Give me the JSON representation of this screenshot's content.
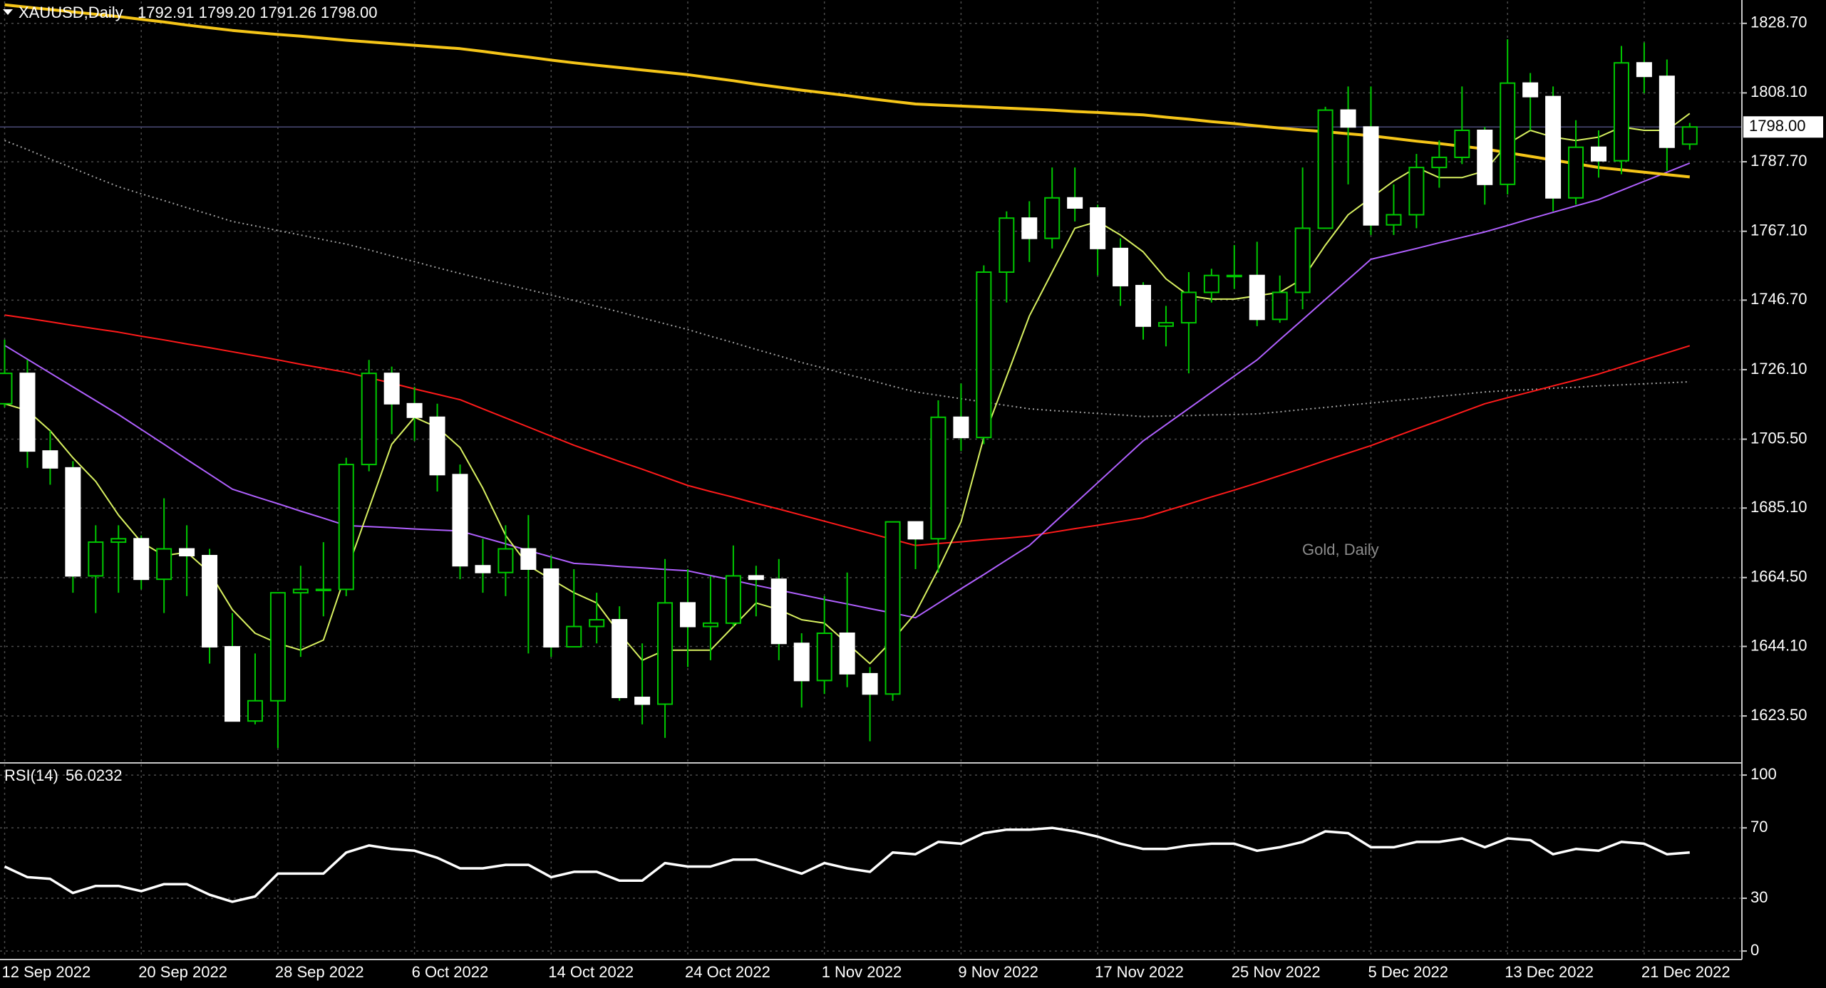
{
  "chart_data": [
    {
      "type": "candlestick",
      "title": "XAUUSD,Daily",
      "ohlc": "1792.91 1799.20 1791.26 1798.00",
      "watermark": "Gold, Daily",
      "categories": [
        "12 Sep 2022",
        null,
        null,
        null,
        null,
        null,
        "20 Sep 2022",
        null,
        null,
        null,
        null,
        null,
        "28 Sep 2022",
        null,
        null,
        null,
        null,
        null,
        "6 Oct 2022",
        null,
        null,
        null,
        null,
        null,
        "14 Oct 2022",
        null,
        null,
        null,
        null,
        null,
        "24 Oct 2022",
        null,
        null,
        null,
        null,
        null,
        "1 Nov 2022",
        null,
        null,
        null,
        null,
        null,
        "9 Nov 2022",
        null,
        null,
        null,
        null,
        null,
        "17 Nov 2022",
        null,
        null,
        null,
        null,
        null,
        "25 Nov 2022",
        null,
        null,
        null,
        null,
        null,
        "5 Dec 2022",
        null,
        null,
        null,
        null,
        null,
        "13 Dec 2022",
        null,
        null,
        null,
        null,
        null,
        "21 Dec 2022",
        null,
        null
      ],
      "open": [
        1716,
        1725,
        1702,
        1697,
        1665,
        1675,
        1676,
        1664,
        1673,
        1671,
        1644,
        1622,
        1628,
        1660,
        1661,
        1661,
        1698,
        1725,
        1716,
        1712,
        1695,
        1668,
        1666,
        1673,
        1667,
        1644,
        1650,
        1652,
        1629,
        1627,
        1657,
        1650,
        1651,
        1665,
        1664,
        1645,
        1634,
        1648,
        1636,
        1630,
        1681,
        1676,
        1712,
        1706,
        1755,
        1771,
        1765,
        1777,
        1774,
        1762,
        1751,
        1739,
        1740,
        1749,
        1754,
        1754,
        1741,
        1749,
        1768,
        1803,
        1798,
        1769,
        1772,
        1786,
        1789,
        1797,
        1781,
        1811,
        1807,
        1777,
        1792,
        1788,
        1817,
        1813,
        1792.91
      ],
      "high": [
        1735,
        1729,
        1708,
        1699,
        1680,
        1680,
        1677,
        1688,
        1680,
        1673,
        1654,
        1642,
        1660,
        1668,
        1675,
        1700,
        1729,
        1727,
        1721,
        1716,
        1698,
        1676,
        1680,
        1683,
        1671,
        1667,
        1660,
        1656,
        1645,
        1670,
        1667,
        1665,
        1674,
        1668,
        1670,
        1648,
        1659,
        1666,
        1638,
        1681,
        1681,
        1717,
        1722,
        1757,
        1773,
        1776,
        1786,
        1786,
        1775,
        1765,
        1752,
        1745,
        1755,
        1756,
        1763,
        1764,
        1754,
        1786,
        1804,
        1810,
        1810,
        1781,
        1790,
        1794,
        1810,
        1798,
        1824,
        1814,
        1810,
        1800,
        1797,
        1822,
        1823,
        1818,
        1799.2
      ],
      "low": [
        1715,
        1697,
        1692,
        1660,
        1654,
        1660,
        1661,
        1654,
        1659,
        1639,
        1622,
        1621,
        1614,
        1641,
        1653,
        1659,
        1696,
        1707,
        1705,
        1690,
        1664,
        1660,
        1659,
        1642,
        1641,
        1644,
        1645,
        1628,
        1621,
        1617,
        1638,
        1640,
        1650,
        1653,
        1640,
        1626,
        1630,
        1632,
        1616,
        1628,
        1667,
        1666,
        1702,
        1704,
        1746,
        1758,
        1762,
        1770,
        1754,
        1745,
        1735,
        1733,
        1725,
        1746,
        1750,
        1739,
        1740,
        1744,
        1768,
        1781,
        1766,
        1766,
        1768,
        1780,
        1787,
        1775,
        1778,
        1797,
        1773,
        1775,
        1783,
        1784,
        1808,
        1785,
        1791.26
      ],
      "close": [
        1725,
        1702,
        1697,
        1665,
        1675,
        1676,
        1664,
        1673,
        1671,
        1644,
        1622,
        1628,
        1660,
        1661,
        1661,
        1698,
        1725,
        1716,
        1712,
        1695,
        1668,
        1666,
        1673,
        1667,
        1644,
        1650,
        1652,
        1629,
        1627,
        1657,
        1650,
        1651,
        1665,
        1664,
        1645,
        1634,
        1648,
        1636,
        1630,
        1681,
        1676,
        1712,
        1706,
        1755,
        1771,
        1765,
        1777,
        1774,
        1762,
        1751,
        1739,
        1740,
        1749,
        1754,
        1754,
        1741,
        1749,
        1768,
        1803,
        1798,
        1769,
        1772,
        1786,
        1789,
        1797,
        1781,
        1811,
        1807,
        1777,
        1792,
        1788,
        1817,
        1813,
        1792,
        1798
      ],
      "up_color": "#000000",
      "down_color": "#ffffff",
      "wick_color": "#00c800",
      "lines": [
        {
          "color": "#a0a0a0",
          "style": "dotted",
          "values": [
            1794.0,
            1791.3,
            1788.5,
            1785.8,
            1783.0,
            1780.3,
            1778.2,
            1776.2,
            1774.1,
            1772.1,
            1770.0,
            1768.7,
            1767.3,
            1766.0,
            1764.6,
            1763.3,
            1761.6,
            1759.8,
            1758.1,
            1756.3,
            1754.6,
            1753.0,
            1751.4,
            1749.8,
            1748.2,
            1746.6,
            1744.9,
            1743.2,
            1741.4,
            1739.7,
            1738.0,
            1736.0,
            1734.1,
            1732.1,
            1730.2,
            1728.2,
            1726.5,
            1724.7,
            1723.0,
            1721.2,
            1719.5,
            1718.5,
            1717.5,
            1716.5,
            1715.5,
            1714.5,
            1714.0,
            1713.6,
            1713.1,
            1712.7,
            1712.2,
            1712.4,
            1712.5,
            1712.7,
            1712.8,
            1713.0,
            1713.6,
            1714.3,
            1714.9,
            1715.6,
            1716.2,
            1716.9,
            1717.5,
            1718.2,
            1718.8,
            1719.5,
            1719.9,
            1720.2,
            1720.6,
            1720.9,
            1721.3,
            1721.6,
            1721.9,
            1722.2,
            1722.5
          ]
        },
        {
          "color": "#ff1a1a",
          "style": "solid",
          "values": [
            1742.3,
            1741.3,
            1740.3,
            1739.2,
            1738.2,
            1737.2,
            1736.0,
            1734.9,
            1733.7,
            1732.6,
            1731.4,
            1730.2,
            1729.0,
            1727.7,
            1726.5,
            1725.3,
            1723.7,
            1722.1,
            1720.4,
            1718.8,
            1717.2,
            1714.5,
            1711.8,
            1709.1,
            1706.4,
            1703.7,
            1701.3,
            1698.9,
            1696.6,
            1694.2,
            1691.8,
            1690.0,
            1688.3,
            1686.5,
            1684.8,
            1683.0,
            1681.2,
            1679.4,
            1677.6,
            1675.8,
            1674.0,
            1674.6,
            1675.1,
            1675.7,
            1676.2,
            1676.8,
            1677.9,
            1679.0,
            1680.0,
            1681.1,
            1682.2,
            1684.3,
            1686.3,
            1688.4,
            1690.4,
            1692.5,
            1694.7,
            1696.9,
            1699.2,
            1701.4,
            1703.6,
            1706.1,
            1708.6,
            1711.0,
            1713.5,
            1716.0,
            1717.8,
            1719.5,
            1721.3,
            1723.0,
            1724.8,
            1726.9,
            1729.0,
            1731.1,
            1733.2
          ]
        },
        {
          "color": "#b060ff",
          "style": "solid",
          "values": [
            1733.3,
            1729.2,
            1725.1,
            1721.0,
            1716.9,
            1712.8,
            1708.4,
            1704.0,
            1699.5,
            1695.1,
            1690.7,
            1688.5,
            1686.4,
            1684.2,
            1682.1,
            1679.9,
            1679.6,
            1679.3,
            1678.9,
            1678.6,
            1678.3,
            1676.4,
            1674.5,
            1672.5,
            1670.6,
            1668.7,
            1668.3,
            1667.8,
            1667.4,
            1666.9,
            1666.5,
            1665.1,
            1663.7,
            1662.2,
            1660.8,
            1659.4,
            1658.0,
            1656.7,
            1655.3,
            1654.0,
            1652.6,
            1656.9,
            1661.2,
            1665.4,
            1669.7,
            1674.0,
            1680.2,
            1686.4,
            1692.6,
            1698.8,
            1705.0,
            1709.8,
            1714.6,
            1719.4,
            1724.2,
            1729.0,
            1735.0,
            1740.9,
            1746.9,
            1752.8,
            1758.8,
            1760.4,
            1762.0,
            1763.7,
            1765.3,
            1766.9,
            1768.8,
            1770.8,
            1772.7,
            1774.6,
            1776.5,
            1779.2,
            1781.9,
            1784.6,
            1787.3
          ]
        },
        {
          "color": "#d8f060",
          "style": "solid",
          "values": [
            1716,
            1714,
            1708,
            1700,
            1693,
            1683,
            1675,
            1671,
            1672,
            1666,
            1655,
            1648,
            1645,
            1643,
            1646,
            1666,
            1685,
            1704,
            1712,
            1709,
            1703,
            1691,
            1677,
            1668,
            1664,
            1660,
            1657,
            1648,
            1640,
            1643,
            1643,
            1643,
            1650,
            1657,
            1655,
            1652,
            1651,
            1645,
            1639,
            1646,
            1654,
            1667,
            1681,
            1706,
            1724,
            1742,
            1755,
            1768,
            1770,
            1766,
            1761,
            1753,
            1748,
            1747,
            1747,
            1748,
            1749,
            1753,
            1763,
            1772,
            1777,
            1782,
            1786,
            1783,
            1783,
            1785,
            1793,
            1797,
            1795,
            1794,
            1795,
            1798,
            1797,
            1797,
            1802
          ]
        },
        {
          "color": "#f5c518",
          "style": "thick",
          "values": [
            1834.2,
            1833.5,
            1832.8,
            1832.1,
            1831.4,
            1830.7,
            1829.9,
            1829.1,
            1828.2,
            1827.4,
            1826.6,
            1826.0,
            1825.4,
            1824.9,
            1824.3,
            1823.7,
            1823.2,
            1822.7,
            1822.2,
            1821.7,
            1821.2,
            1820.4,
            1819.5,
            1818.7,
            1817.8,
            1817.0,
            1816.3,
            1815.6,
            1814.9,
            1814.2,
            1813.5,
            1812.6,
            1811.7,
            1810.7,
            1809.8,
            1808.9,
            1808.1,
            1807.3,
            1806.4,
            1805.6,
            1804.8,
            1804.5,
            1804.2,
            1803.9,
            1803.6,
            1803.3,
            1803.0,
            1802.6,
            1802.3,
            1801.9,
            1801.6,
            1800.9,
            1800.3,
            1799.6,
            1799.0,
            1798.3,
            1797.7,
            1797.1,
            1796.6,
            1796.0,
            1795.4,
            1794.6,
            1793.8,
            1793.1,
            1792.3,
            1791.5,
            1790.4,
            1789.3,
            1788.2,
            1787.1,
            1786.0,
            1785.3,
            1784.6,
            1783.9,
            1783.2
          ]
        }
      ],
      "price_line": {
        "value": 1798,
        "label": "1798.00"
      },
      "ylim": [
        1609.8,
        1835.2
      ],
      "yticks": [
        {
          "value": 1828.7,
          "label": "1828.70"
        },
        {
          "value": 1808.1,
          "label": "1808.10"
        },
        {
          "value": 1787.7,
          "label": "1787.70"
        },
        {
          "value": 1767.1,
          "label": "1767.10"
        },
        {
          "value": 1746.7,
          "label": "1746.70"
        },
        {
          "value": 1726.1,
          "label": "1726.10"
        },
        {
          "value": 1705.5,
          "label": "1705.50"
        },
        {
          "value": 1685.1,
          "label": "1685.10"
        },
        {
          "value": 1664.5,
          "label": "1664.50"
        },
        {
          "value": 1644.1,
          "label": "1644.10"
        },
        {
          "value": 1623.5,
          "label": "1623.50"
        }
      ],
      "grid": true
    },
    {
      "type": "line",
      "title": "RSI(14)",
      "series": [
        {
          "color": "#ffffff",
          "values": [
            48,
            42,
            41,
            33,
            37,
            37,
            34,
            38,
            38,
            32,
            28,
            31,
            44,
            44,
            44,
            56,
            60,
            58,
            57,
            53,
            47,
            47,
            49,
            49,
            42,
            45,
            45,
            40,
            40,
            50,
            48,
            48,
            52,
            52,
            48,
            44,
            50,
            47,
            45,
            56,
            55,
            62,
            61,
            67,
            69,
            69,
            70,
            68,
            65,
            61,
            58,
            58,
            60,
            61,
            61,
            57,
            59,
            62,
            68,
            67,
            59,
            59,
            62,
            62,
            64,
            59,
            64,
            63,
            55,
            58,
            57,
            62,
            61,
            55,
            56.0232
          ]
        }
      ],
      "ylim": [
        -4,
        106.1
      ],
      "yticks": [
        100,
        70,
        30,
        0
      ],
      "grid": true
    }
  ]
}
